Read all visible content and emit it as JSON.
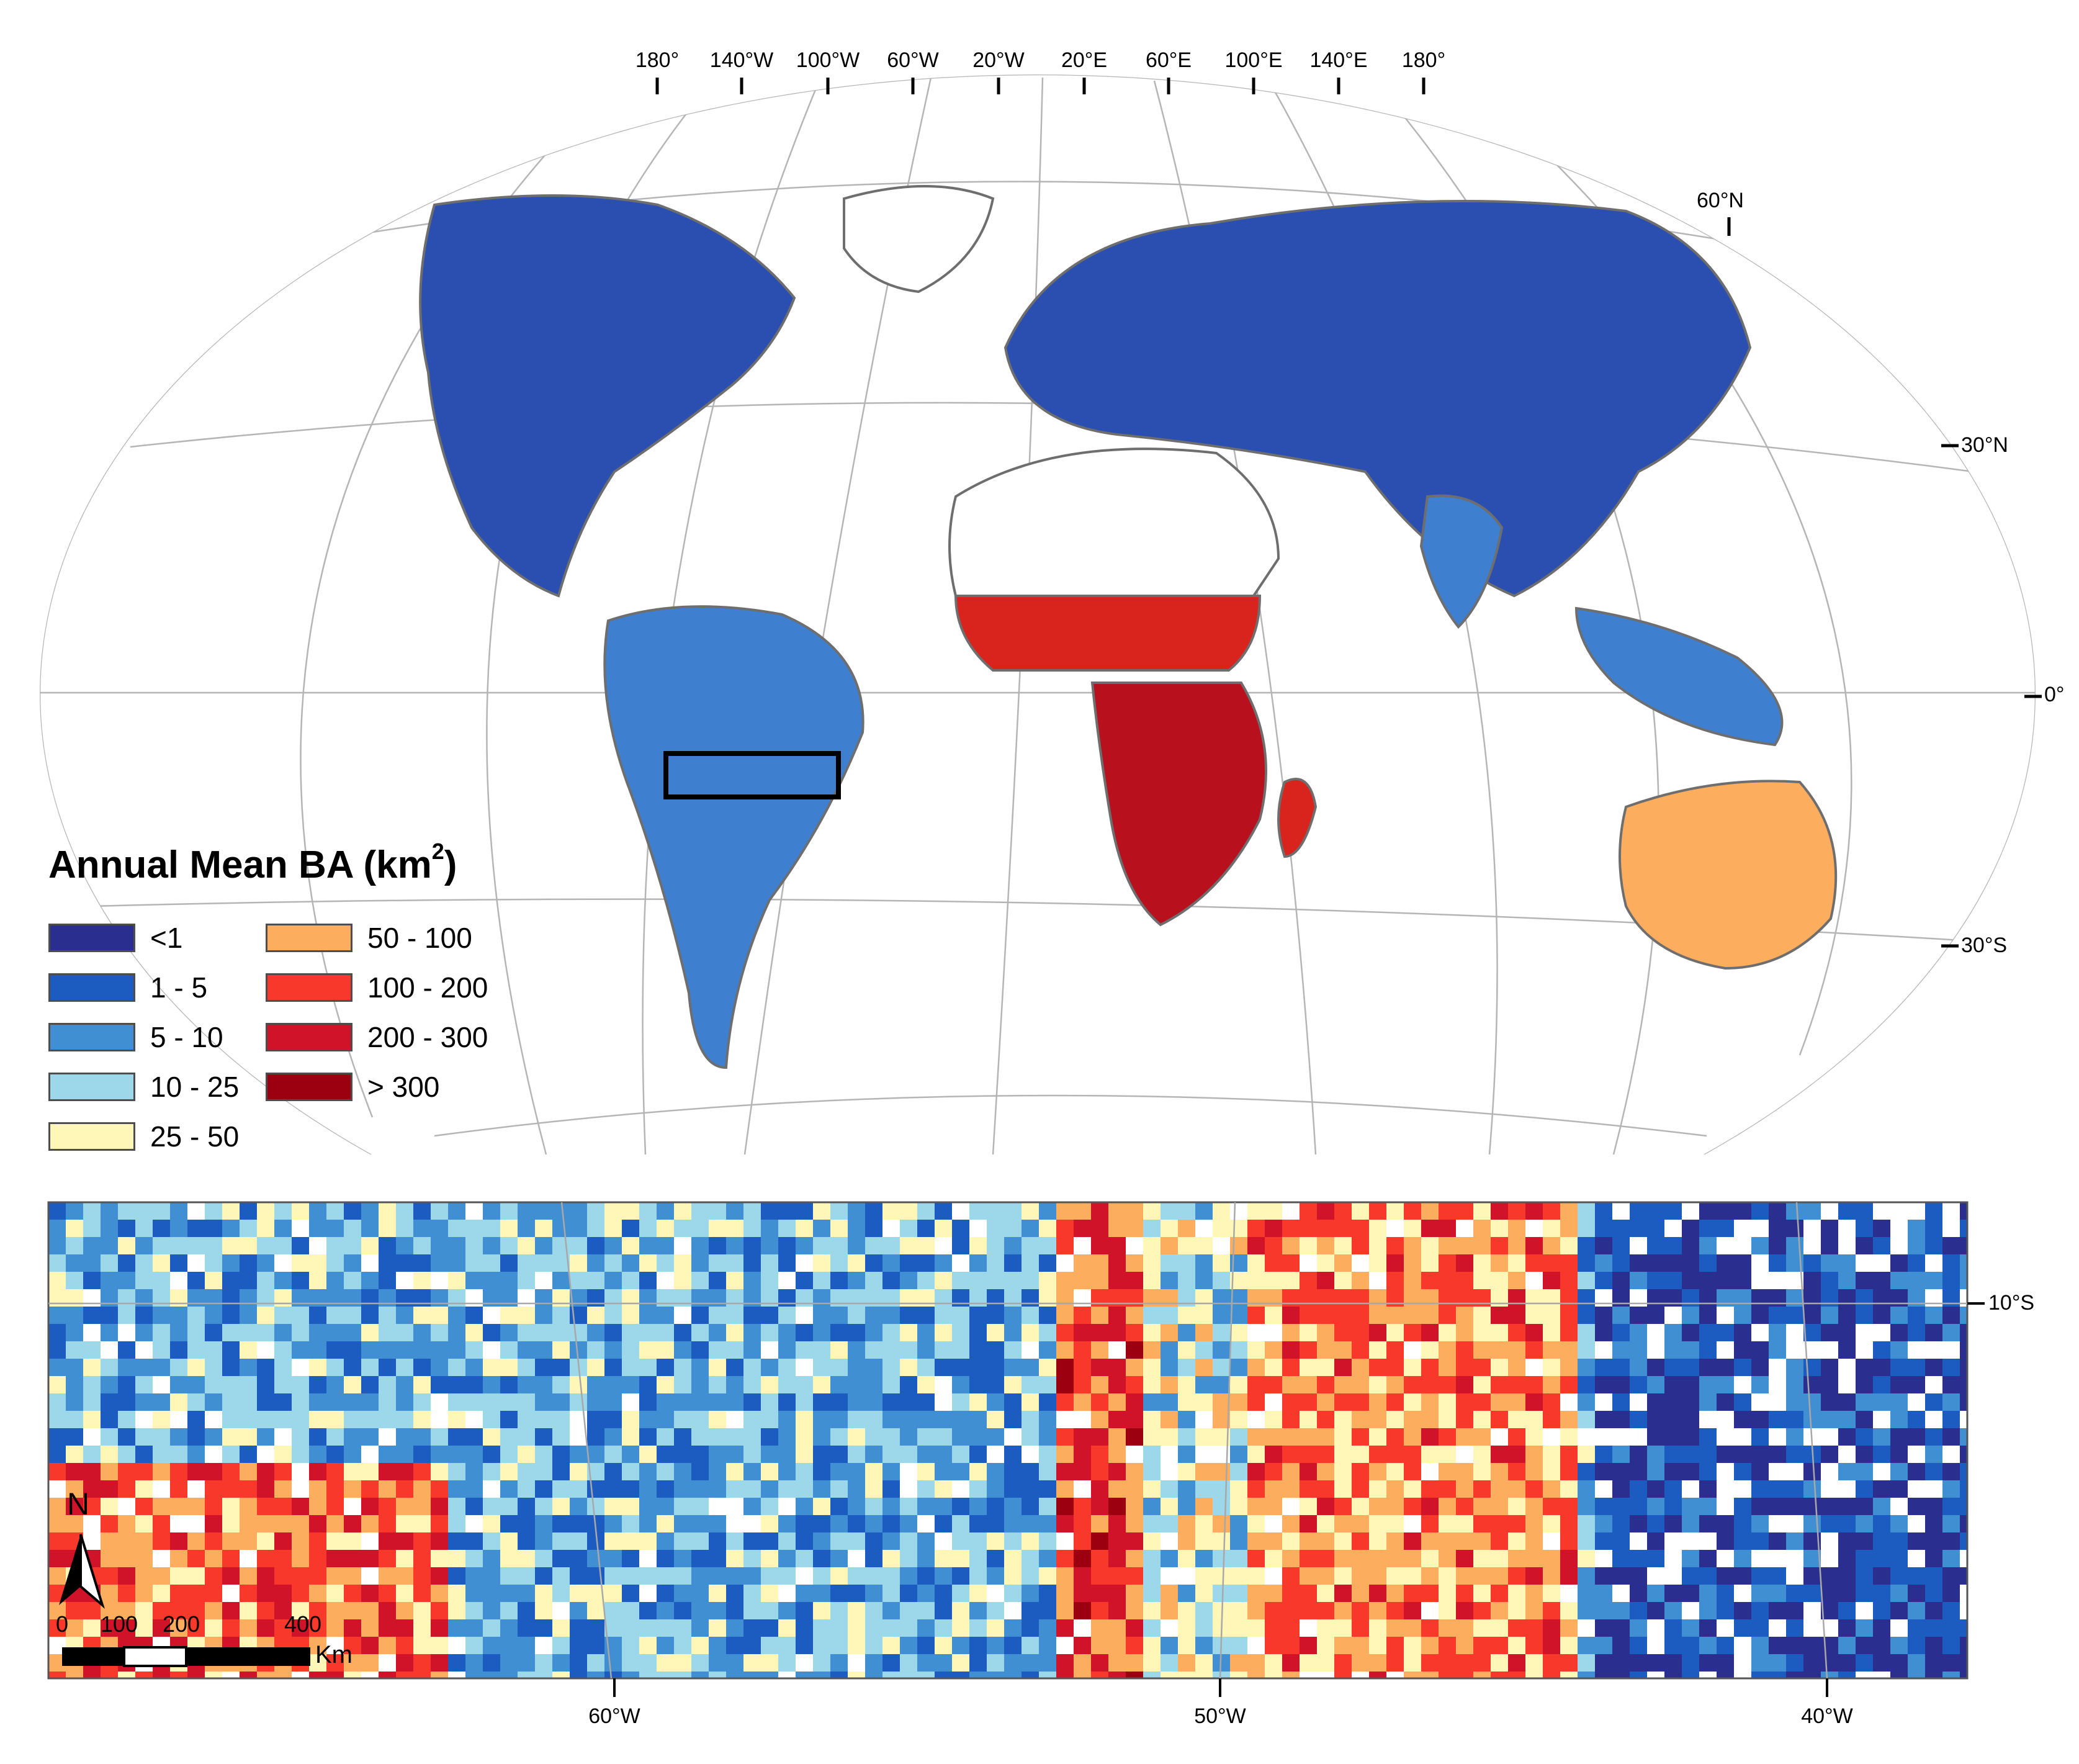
{
  "legend": {
    "title_main": "Annual Mean BA (km",
    "title_sup": "2",
    "title_end": ")",
    "classes": [
      {
        "label": "<1",
        "color": "#2a2f8f"
      },
      {
        "label": "1 - 5",
        "color": "#1c5cc0"
      },
      {
        "label": "5 - 10",
        "color": "#3f8fd2"
      },
      {
        "label": "10 - 25",
        "color": "#9dd7ea"
      },
      {
        "label": "25 - 50",
        "color": "#fff7b8"
      },
      {
        "label": "50 - 100",
        "color": "#fdad5e"
      },
      {
        "label": "100 - 200",
        "color": "#f7382a"
      },
      {
        "label": "200 - 300",
        "color": "#d01328"
      },
      {
        "label": "> 300",
        "color": "#9c0010"
      }
    ]
  },
  "world_map": {
    "longitude_labels": [
      "180°",
      "140°W",
      "100°W",
      "60°W",
      "20°W",
      "20°E",
      "60°E",
      "100°E",
      "140°E",
      "180°"
    ],
    "latitude_labels": {
      "n60": "60°N",
      "n30": "30°N",
      "eq": "0°",
      "s30": "30°S"
    }
  },
  "inset_map": {
    "longitude_labels": [
      "60°W",
      "50°W",
      "40°W"
    ],
    "latitude_label": "10°S",
    "north_arrow": "N",
    "scale_bar": {
      "ticks": [
        "0",
        "100",
        "200",
        "400"
      ],
      "unit": "Km"
    }
  }
}
